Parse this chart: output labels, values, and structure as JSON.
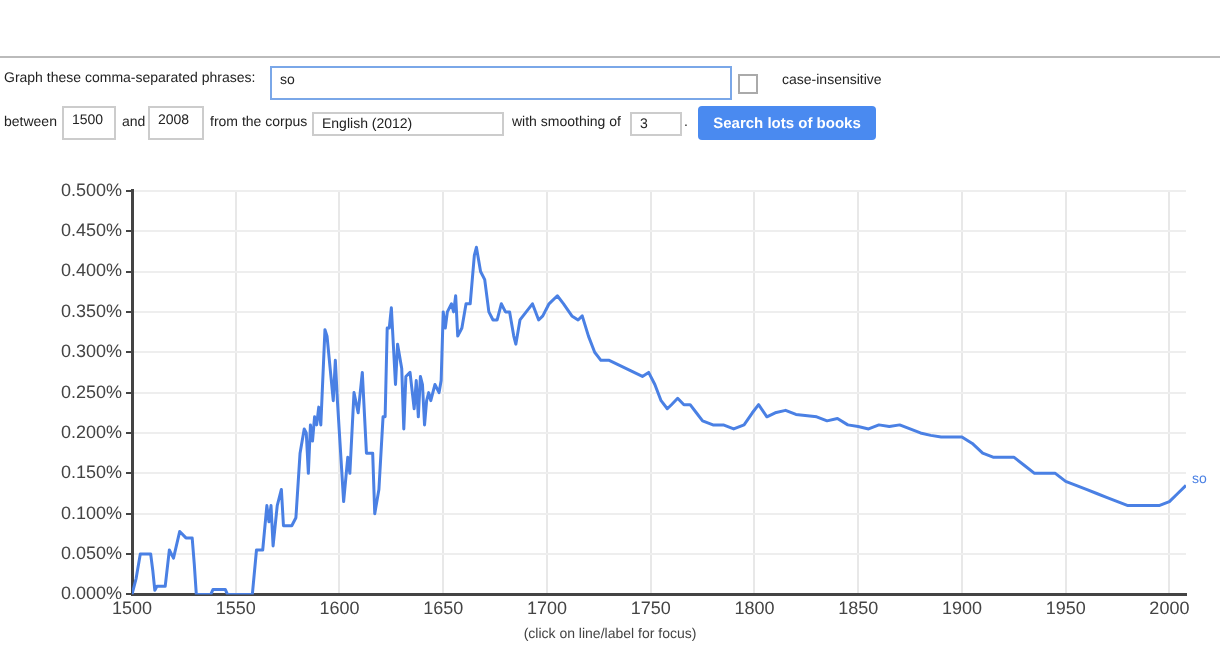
{
  "chart_data": {
    "type": "line",
    "annotations": [
      "Graph these comma-separated phrases:",
      "so",
      "case-insensitive",
      "between",
      "1500",
      "and",
      "2008",
      "from the corpus",
      "English (2012)",
      "with smoothing of",
      "3",
      ".",
      "Search lots of books",
      "(click on line/label for focus)"
    ],
    "x": [
      1500,
      1502,
      1504,
      1509,
      1510,
      1511,
      1512,
      1516,
      1518,
      1520,
      1523,
      1526,
      1529,
      1530,
      1531,
      1538,
      1539,
      1545,
      1546,
      1558,
      1560,
      1563,
      1565,
      1566,
      1567,
      1568,
      1570,
      1572,
      1573,
      1577,
      1579,
      1581,
      1583,
      1584,
      1585,
      1586,
      1587,
      1588,
      1589,
      1590,
      1591,
      1593,
      1594,
      1597,
      1598,
      1599,
      1602,
      1604,
      1605,
      1607,
      1609,
      1611,
      1613,
      1616,
      1617,
      1619,
      1621,
      1622,
      1623,
      1624,
      1625,
      1627,
      1628,
      1630,
      1631,
      1632,
      1634,
      1636,
      1637,
      1638,
      1639,
      1640,
      1641,
      1642,
      1643,
      1644,
      1646,
      1648,
      1649,
      1650,
      1651,
      1652,
      1654,
      1655,
      1656,
      1657,
      1659,
      1661,
      1663,
      1665,
      1666,
      1668,
      1670,
      1672,
      1674,
      1676,
      1678,
      1680,
      1682,
      1684,
      1685,
      1687,
      1690,
      1693,
      1696,
      1698,
      1701,
      1705,
      1708,
      1712,
      1715,
      1717,
      1720,
      1723,
      1726,
      1730,
      1734,
      1738,
      1742,
      1746,
      1749,
      1752,
      1755,
      1758,
      1760,
      1763,
      1766,
      1769,
      1772,
      1775,
      1780,
      1785,
      1790,
      1795,
      1799,
      1802,
      1806,
      1810,
      1815,
      1820,
      1830,
      1835,
      1840,
      1845,
      1850,
      1855,
      1860,
      1865,
      1870,
      1875,
      1880,
      1885,
      1890,
      1900,
      1905,
      1910,
      1915,
      1920,
      1925,
      1930,
      1935,
      1940,
      1945,
      1950,
      1955,
      1960,
      1965,
      1970,
      1975,
      1980,
      1985,
      1990,
      1995,
      2000,
      2004,
      2008
    ],
    "series": [
      {
        "name": "so",
        "color": "#4a80e4",
        "values": [
          0,
          0.02,
          0.05,
          0.05,
          0.03,
          0.005,
          0.01,
          0.01,
          0.055,
          0.045,
          0.078,
          0.07,
          0.07,
          0.038,
          0,
          0,
          0.006,
          0.006,
          0,
          0,
          0.055,
          0.055,
          0.11,
          0.09,
          0.11,
          0.06,
          0.11,
          0.13,
          0.085,
          0.085,
          0.095,
          0.175,
          0.205,
          0.2,
          0.15,
          0.21,
          0.19,
          0.22,
          0.21,
          0.232,
          0.21,
          0.328,
          0.32,
          0.24,
          0.29,
          0.24,
          0.115,
          0.17,
          0.15,
          0.25,
          0.225,
          0.275,
          0.175,
          0.175,
          0.1,
          0.13,
          0.22,
          0.22,
          0.33,
          0.33,
          0.355,
          0.26,
          0.31,
          0.28,
          0.205,
          0.27,
          0.275,
          0.23,
          0.265,
          0.22,
          0.27,
          0.26,
          0.21,
          0.24,
          0.25,
          0.24,
          0.26,
          0.25,
          0.265,
          0.35,
          0.33,
          0.35,
          0.36,
          0.35,
          0.37,
          0.32,
          0.33,
          0.36,
          0.36,
          0.42,
          0.43,
          0.4,
          0.39,
          0.35,
          0.34,
          0.34,
          0.36,
          0.35,
          0.35,
          0.32,
          0.31,
          0.34,
          0.35,
          0.36,
          0.34,
          0.345,
          0.36,
          0.37,
          0.36,
          0.345,
          0.34,
          0.345,
          0.32,
          0.3,
          0.29,
          0.29,
          0.285,
          0.28,
          0.275,
          0.27,
          0.275,
          0.26,
          0.24,
          0.23,
          0.235,
          0.243,
          0.235,
          0.235,
          0.225,
          0.215,
          0.21,
          0.21,
          0.205,
          0.21,
          0.225,
          0.235,
          0.22,
          0.225,
          0.228,
          0.223,
          0.22,
          0.215,
          0.218,
          0.21,
          0.208,
          0.205,
          0.21,
          0.208,
          0.21,
          0.205,
          0.2,
          0.197,
          0.195,
          0.195,
          0.187,
          0.175,
          0.17,
          0.17,
          0.17,
          0.16,
          0.15,
          0.15,
          0.15,
          0.14,
          0.135,
          0.13,
          0.125,
          0.12,
          0.115,
          0.11,
          0.11,
          0.11,
          0.11,
          0.115,
          0.125,
          0.135
        ]
      }
    ],
    "xlim": [
      1500,
      2008
    ],
    "xticks": [
      1500,
      1550,
      1600,
      1650,
      1700,
      1750,
      1800,
      1850,
      1900,
      1950,
      2000
    ],
    "ylim": [
      0,
      0.5
    ],
    "yticks": [
      {
        "value": 0,
        "label": "0.000%"
      },
      {
        "value": 0.05,
        "label": "0.050%"
      },
      {
        "value": 0.1,
        "label": "0.100%"
      },
      {
        "value": 0.15,
        "label": "0.150%"
      },
      {
        "value": 0.2,
        "label": "0.200%"
      },
      {
        "value": 0.25,
        "label": "0.250%"
      },
      {
        "value": 0.3,
        "label": "0.300%"
      },
      {
        "value": 0.35,
        "label": "0.350%"
      },
      {
        "value": 0.4,
        "label": "0.400%"
      },
      {
        "value": 0.45,
        "label": "0.450%"
      },
      {
        "value": 0.5,
        "label": "0.500%"
      }
    ],
    "grid": true,
    "legend": false,
    "marker": "none",
    "line_style": "solid"
  }
}
